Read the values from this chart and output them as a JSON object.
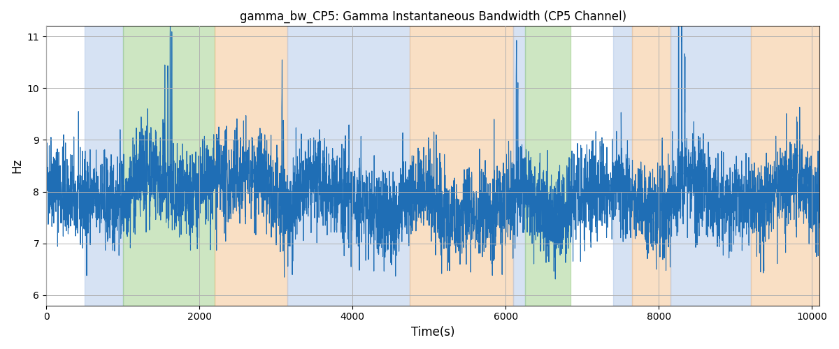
{
  "title": "gamma_bw_CP5: Gamma Instantaneous Bandwidth (CP5 Channel)",
  "xlabel": "Time(s)",
  "ylabel": "Hz",
  "xlim": [
    0,
    10100
  ],
  "ylim": [
    5.8,
    11.2
  ],
  "yticks": [
    6,
    7,
    8,
    9,
    10,
    11
  ],
  "xticks": [
    0,
    2000,
    4000,
    6000,
    8000,
    10000
  ],
  "line_color": "#1f6eb5",
  "line_width": 0.8,
  "grid_color": "#b0b0b0",
  "colored_bands": [
    {
      "xmin": 500,
      "xmax": 1000,
      "color": "#aec6e8",
      "alpha": 0.5
    },
    {
      "xmin": 1000,
      "xmax": 2200,
      "color": "#90c878",
      "alpha": 0.45
    },
    {
      "xmin": 2200,
      "xmax": 3150,
      "color": "#f5c08a",
      "alpha": 0.5
    },
    {
      "xmin": 3150,
      "xmax": 4750,
      "color": "#aec6e8",
      "alpha": 0.5
    },
    {
      "xmin": 4750,
      "xmax": 6100,
      "color": "#f5c08a",
      "alpha": 0.5
    },
    {
      "xmin": 6100,
      "xmax": 6250,
      "color": "#aec6e8",
      "alpha": 0.5
    },
    {
      "xmin": 6250,
      "xmax": 6850,
      "color": "#90c878",
      "alpha": 0.45
    },
    {
      "xmin": 7400,
      "xmax": 7650,
      "color": "#aec6e8",
      "alpha": 0.5
    },
    {
      "xmin": 7650,
      "xmax": 8150,
      "color": "#f5c08a",
      "alpha": 0.5
    },
    {
      "xmin": 8150,
      "xmax": 9200,
      "color": "#aec6e8",
      "alpha": 0.5
    },
    {
      "xmin": 9200,
      "xmax": 10100,
      "color": "#f5c08a",
      "alpha": 0.5
    }
  ],
  "seed": 42,
  "n_points": 5000,
  "time_start": 0,
  "time_end": 10100,
  "base_mean": 7.9,
  "noise_std": 0.45,
  "spike_locs": [
    1550,
    1590,
    1620,
    1640,
    3080,
    3100,
    6140,
    6160,
    8260,
    8300,
    8340
  ],
  "spike_heights": [
    1.5,
    2.0,
    3.2,
    2.5,
    2.4,
    1.8,
    2.6,
    1.5,
    3.2,
    2.8,
    1.6
  ]
}
